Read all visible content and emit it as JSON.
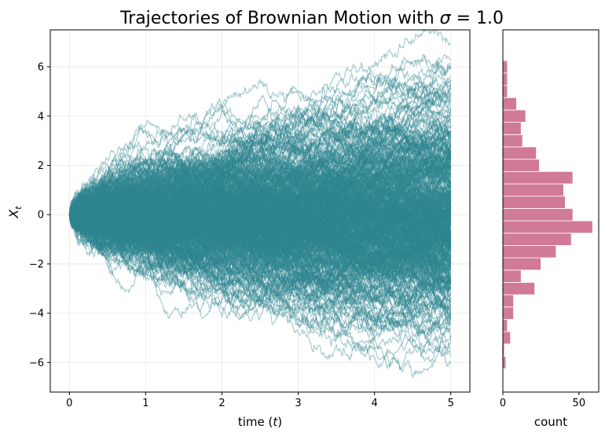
{
  "figure": {
    "title_prefix": "Trajectories of Brownian Motion with ",
    "title_sigma": "σ",
    "title_suffix": " = 1.0"
  },
  "chart_data": [
    {
      "type": "line",
      "description_role": "main",
      "title": "Trajectories of Brownian Motion with σ = 1.0",
      "xlabel_prefix": "time (",
      "xlabel_var": "t",
      "xlabel_suffix": ")",
      "ylabel_main": "X",
      "ylabel_sub": "t",
      "xlim": [
        -0.25,
        5.25
      ],
      "ylim": [
        -7.2,
        7.5
      ],
      "xticks": [
        0,
        1,
        2,
        3,
        4,
        5
      ],
      "xtick_labels": [
        "0",
        "1",
        "2",
        "3",
        "4",
        "5"
      ],
      "yticks": [
        -6,
        -4,
        -2,
        0,
        2,
        4,
        6
      ],
      "ytick_labels": [
        "−6",
        "−4",
        "−2",
        "0",
        "2",
        "4",
        "6"
      ],
      "grid": true,
      "n_paths": 500,
      "n_steps": 500,
      "t_end": 5,
      "sigma": 1.0,
      "line_color": "#2e8690",
      "line_alpha": 0.45
    },
    {
      "type": "bar",
      "orientation": "horizontal",
      "description_role": "histogram",
      "xlabel": "count",
      "xlim": [
        0,
        63
      ],
      "ylim": [
        -7.2,
        7.5
      ],
      "xticks": [
        0,
        50
      ],
      "xtick_labels": [
        "0",
        "50"
      ],
      "bar_color": "#d07a96",
      "bin_width": 0.5,
      "bins": [
        {
          "y": -6.0,
          "count": 2
        },
        {
          "y": -5.5,
          "count": 1
        },
        {
          "y": -5.0,
          "count": 5
        },
        {
          "y": -4.5,
          "count": 3
        },
        {
          "y": -4.0,
          "count": 7
        },
        {
          "y": -3.5,
          "count": 7
        },
        {
          "y": -3.0,
          "count": 21
        },
        {
          "y": -2.5,
          "count": 12
        },
        {
          "y": -2.0,
          "count": 25
        },
        {
          "y": -1.5,
          "count": 35
        },
        {
          "y": -1.0,
          "count": 45
        },
        {
          "y": -0.5,
          "count": 59
        },
        {
          "y": 0.0,
          "count": 46
        },
        {
          "y": 0.5,
          "count": 41
        },
        {
          "y": 1.0,
          "count": 40
        },
        {
          "y": 1.5,
          "count": 46
        },
        {
          "y": 2.0,
          "count": 24
        },
        {
          "y": 2.5,
          "count": 22
        },
        {
          "y": 3.0,
          "count": 13
        },
        {
          "y": 3.5,
          "count": 12
        },
        {
          "y": 4.0,
          "count": 15
        },
        {
          "y": 4.5,
          "count": 9
        },
        {
          "y": 5.0,
          "count": 3
        },
        {
          "y": 5.5,
          "count": 3
        },
        {
          "y": 6.0,
          "count": 3
        }
      ]
    }
  ]
}
